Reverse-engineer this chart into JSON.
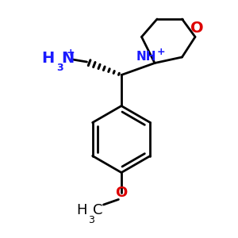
{
  "bg_color": "#ffffff",
  "black": "#000000",
  "blue": "#1a1aff",
  "red": "#dd0000",
  "lw": 2.0,
  "figsize": [
    3.0,
    3.0
  ],
  "dpi": 100,
  "xlim": [
    0,
    10
  ],
  "ylim": [
    0,
    10
  ]
}
